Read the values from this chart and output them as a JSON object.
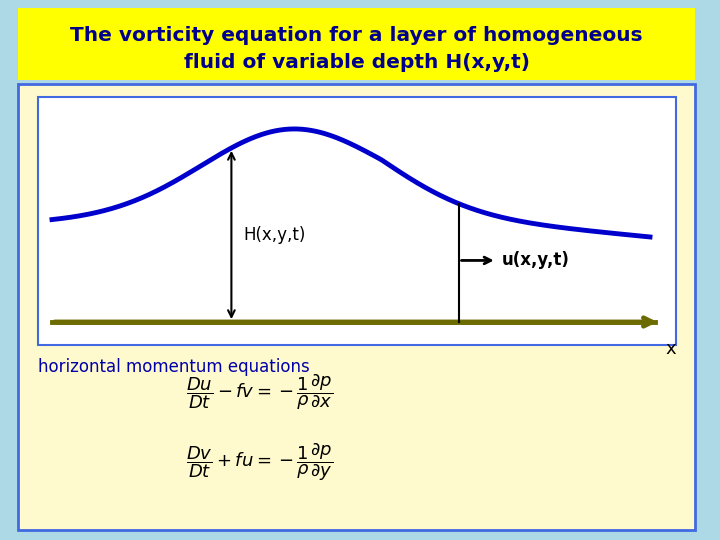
{
  "bg_color": "#add8e6",
  "title_box_color": "#ffff00",
  "title_text_line1": "The vorticity equation for a layer of homogeneous",
  "title_text_line2": "fluid of variable depth H(x,y,t)",
  "title_color": "#00008b",
  "title_fontsize": 14.5,
  "outer_box_color": "#fffacd",
  "outer_box_border_color": "#4169e1",
  "diagram_box_color": "#ffffff",
  "diagram_border_color": "#4169e1",
  "ground_color": "#6b6b00",
  "water_surface_color": "#0000cc",
  "water_lw": 3.5,
  "label_H": "H(x,y,t)",
  "label_u": "u(x,y,t)",
  "label_x": "x",
  "label_fontsize": 11,
  "horiz_label": "horizontal momentum equations",
  "horiz_label_color": "#0000aa",
  "horiz_label_fontsize": 12
}
